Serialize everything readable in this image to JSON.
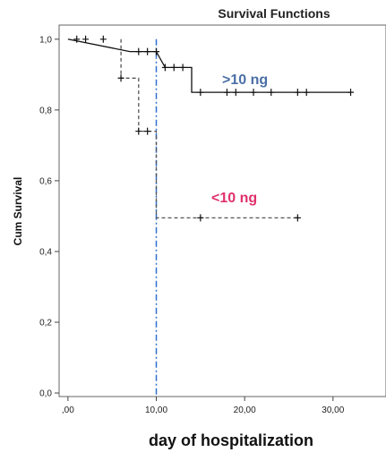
{
  "chart_data": {
    "type": "line",
    "title": "Survival Functions",
    "xlabel": "day of hospitalization",
    "ylabel": "Cum Survival",
    "xlim": [
      -1,
      36
    ],
    "ylim": [
      -0.01,
      1.04
    ],
    "x_ticks": [
      ",00",
      "10,00",
      "20,00",
      "30,00"
    ],
    "x_tick_values": [
      0,
      10,
      20,
      30
    ],
    "y_ticks": [
      "0,0",
      "0,2",
      "0,4",
      "0,6",
      "0,8",
      "1,0"
    ],
    "y_tick_values": [
      0,
      0.2,
      0.4,
      0.6,
      0.8,
      1.0
    ],
    "grid": false,
    "series": [
      {
        "name": ">10 ng",
        "color": "#4a6fa5",
        "style": "solid",
        "line_color": "#111111",
        "steps": [
          [
            0,
            1.0
          ],
          [
            7,
            0.965
          ],
          [
            10,
            0.965
          ],
          [
            11,
            0.92
          ],
          [
            14,
            0.92
          ],
          [
            14,
            0.85
          ],
          [
            32,
            0.85
          ]
        ],
        "censored": [
          [
            1,
            1.0
          ],
          [
            2,
            1.0
          ],
          [
            4,
            1.0
          ],
          [
            8,
            0.965
          ],
          [
            9,
            0.965
          ],
          [
            10,
            0.965
          ],
          [
            11,
            0.92
          ],
          [
            12,
            0.92
          ],
          [
            13,
            0.92
          ],
          [
            15,
            0.85
          ],
          [
            18,
            0.85
          ],
          [
            19,
            0.85
          ],
          [
            21,
            0.85
          ],
          [
            23,
            0.85
          ],
          [
            26,
            0.85
          ],
          [
            27,
            0.85
          ],
          [
            32,
            0.85
          ]
        ]
      },
      {
        "name": "<10 ng",
        "color": "#e0306a",
        "style": "dashed",
        "line_color": "#555555",
        "steps": [
          [
            6,
            1.0
          ],
          [
            6,
            0.89
          ],
          [
            8,
            0.89
          ],
          [
            8,
            0.74
          ],
          [
            10,
            0.74
          ],
          [
            10,
            0.495
          ],
          [
            26,
            0.495
          ]
        ],
        "censored": [
          [
            6,
            0.89
          ],
          [
            8,
            0.74
          ],
          [
            9,
            0.74
          ],
          [
            15,
            0.495
          ],
          [
            26,
            0.495
          ]
        ]
      }
    ],
    "reference_line": {
      "x": 10,
      "color": "#2f6fcf",
      "style": "dash-dot"
    }
  }
}
